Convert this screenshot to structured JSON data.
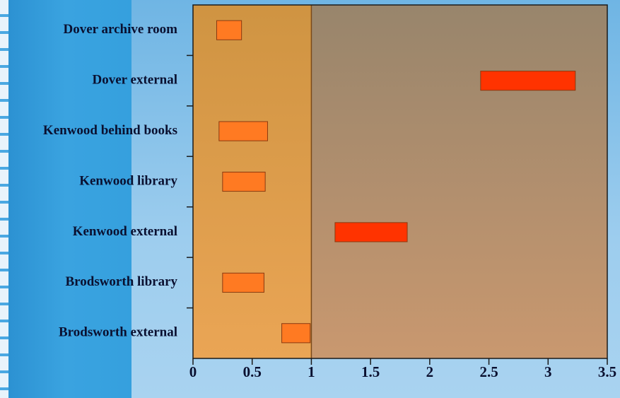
{
  "chart_data": {
    "type": "bar",
    "orientation": "horizontal",
    "subtype": "floating-range",
    "categories": [
      "Dover archive room",
      "Dover external",
      "Kenwood behind books",
      "Kenwood library",
      "Kenwood external",
      "Brodsworth library",
      "Brodsworth external"
    ],
    "series": [
      {
        "ranges": [
          [
            0.2,
            0.41
          ],
          [
            2.43,
            3.23
          ],
          [
            0.22,
            0.63
          ],
          [
            0.25,
            0.61
          ],
          [
            1.2,
            1.81
          ],
          [
            0.25,
            0.6
          ],
          [
            0.75,
            0.99
          ]
        ]
      }
    ],
    "xlim": [
      0,
      3.5
    ],
    "xticks": [
      "0",
      "0.5",
      "1",
      "1.5",
      "2",
      "2.5",
      "3",
      "3.5"
    ],
    "xtick_values": [
      0,
      0.5,
      1,
      1.5,
      2,
      2.5,
      3,
      3.5
    ],
    "shaded_region": [
      0,
      1
    ],
    "grid": false,
    "colors": {
      "bar_low": "#ff7a22",
      "bar_high": "#ff3300",
      "shaded_region": "#e6a552",
      "plot_background": "#9c8a70"
    },
    "high_threshold": 1
  }
}
